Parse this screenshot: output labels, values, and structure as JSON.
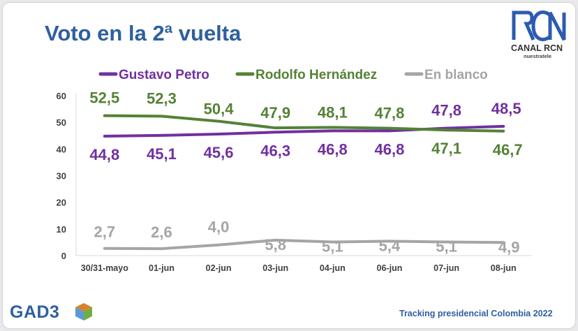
{
  "title": "Voto en la 2ª vuelta",
  "logo_top": {
    "name": "CANAL RCN",
    "slogan": "nuestratele"
  },
  "logo_bottom": {
    "name": "GAD3"
  },
  "footer": "Tracking presidencial Colombia 2022",
  "chart_data": {
    "type": "line",
    "categories": [
      "30/31-mayo",
      "01-jun",
      "02-jun",
      "03-jun",
      "04-jun",
      "06-jun",
      "07-jun",
      "08-jun"
    ],
    "ylim": [
      0,
      60
    ],
    "yticks": [
      "0",
      "10",
      "20",
      "30",
      "40",
      "50",
      "60"
    ],
    "legend_position": "top-left",
    "grid": false,
    "series": [
      {
        "name": "Gustavo Petro",
        "color": "#7030a0",
        "values": [
          44.8,
          45.1,
          45.6,
          46.3,
          46.8,
          46.8,
          47.8,
          48.5
        ],
        "labels": [
          "44,8",
          "45,1",
          "45,6",
          "46,3",
          "46,8",
          "46,8",
          "47,8",
          "48,5"
        ]
      },
      {
        "name": "Rodolfo Hernández",
        "color": "#548235",
        "values": [
          52.5,
          52.3,
          50.4,
          47.9,
          48.1,
          47.8,
          47.1,
          46.7
        ],
        "labels": [
          "52,5",
          "52,3",
          "50,4",
          "47,9",
          "48,1",
          "47,8",
          "47,1",
          "46,7"
        ]
      },
      {
        "name": "En blanco",
        "color": "#a5a5a5",
        "values": [
          2.7,
          2.6,
          4.0,
          5.8,
          5.1,
          5.4,
          5.1,
          4.9
        ],
        "labels": [
          "2,7",
          "2,6",
          "4,0",
          "5,8",
          "5,1",
          "5,4",
          "5,1",
          "4,9"
        ]
      }
    ]
  }
}
